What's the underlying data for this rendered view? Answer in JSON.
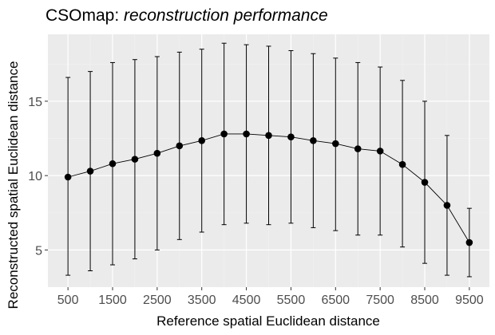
{
  "chart_data": {
    "type": "line",
    "title_plain": "CSOmap: ",
    "title_italic": "reconstruction performance",
    "xlabel": "Reference spatial Euclidean distance",
    "ylabel": "Reconstructed spatial Euclidean distance",
    "x": [
      500,
      1000,
      1500,
      2000,
      2500,
      3000,
      3500,
      4000,
      4500,
      5000,
      5500,
      6000,
      6500,
      7000,
      7500,
      8000,
      8500,
      9000,
      9500
    ],
    "y": [
      9.9,
      10.3,
      10.8,
      11.1,
      11.5,
      12.0,
      12.35,
      12.8,
      12.8,
      12.7,
      12.6,
      12.35,
      12.15,
      11.8,
      11.65,
      10.75,
      9.55,
      8.0,
      5.5
    ],
    "ymin": [
      3.3,
      3.6,
      4.0,
      4.4,
      5.0,
      5.7,
      6.2,
      6.7,
      6.8,
      6.7,
      6.8,
      6.5,
      6.3,
      6.0,
      6.0,
      5.2,
      4.1,
      3.3,
      3.2
    ],
    "ymax": [
      16.6,
      17.0,
      17.6,
      17.8,
      18.0,
      18.3,
      18.5,
      18.9,
      18.8,
      18.7,
      18.4,
      18.2,
      17.9,
      17.6,
      17.3,
      16.4,
      15.0,
      12.7,
      7.8
    ],
    "xticks": [
      500,
      1500,
      2500,
      3500,
      4500,
      5500,
      6500,
      7500,
      8500,
      9500
    ],
    "xtick_labels": [
      "500",
      "1500",
      "2500",
      "3500",
      "4500",
      "5500",
      "6500",
      "7500",
      "8500",
      "9500"
    ],
    "yticks": [
      5,
      10,
      15
    ],
    "ytick_labels": [
      "5",
      "10",
      "15"
    ],
    "xlim": [
      50,
      9950
    ],
    "ylim": [
      2.5,
      19.5
    ],
    "grid": true,
    "legend": "none",
    "colors": {
      "panel_background": "#ebebeb",
      "grid_major": "#ffffff",
      "grid_minor": "#f2f2f2",
      "series": "#000000",
      "tick_label": "#4d4d4d"
    }
  }
}
